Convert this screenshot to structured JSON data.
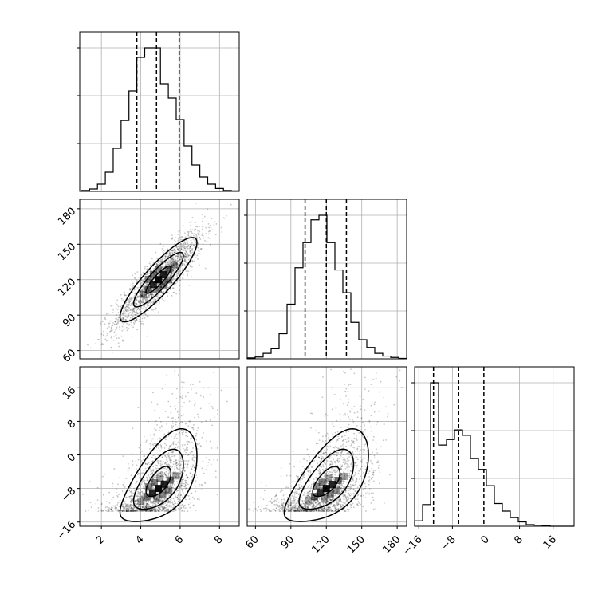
{
  "chart_data": {
    "type": "corner",
    "parameters": [
      {
        "ticks": [
          2,
          4,
          6,
          8
        ],
        "tick_labels": [
          "2",
          "4",
          "6",
          "8"
        ],
        "range": [
          0.9,
          9.0
        ],
        "quantiles": [
          3.8,
          4.8,
          5.95
        ]
      },
      {
        "ticks": [
          60,
          90,
          120,
          150,
          180
        ],
        "tick_labels": [
          "60",
          "90",
          "120",
          "150",
          "180"
        ],
        "range": [
          53,
          188
        ],
        "quantiles": [
          102,
          120,
          137
        ]
      },
      {
        "ticks": [
          -16,
          -8,
          0,
          8,
          16
        ],
        "tick_labels": [
          "−16",
          "−8",
          "0",
          "8",
          "16"
        ],
        "range": [
          -17,
          21
        ],
        "quantiles": [
          -12.5,
          -6.5,
          -0.5
        ]
      }
    ],
    "histograms": [
      {
        "param": 0,
        "bin_edges": [
          1.0,
          1.4,
          1.8,
          2.2,
          2.6,
          3.0,
          3.4,
          3.8,
          4.2,
          4.6,
          5.0,
          5.4,
          5.8,
          6.2,
          6.6,
          7.0,
          7.4,
          7.8,
          8.2,
          8.6,
          9.0
        ],
        "counts": [
          2,
          5,
          15,
          40,
          90,
          148,
          210,
          280,
          300,
          300,
          225,
          195,
          150,
          95,
          55,
          30,
          15,
          6,
          2,
          1
        ]
      },
      {
        "param": 1,
        "bin_edges": [
          53,
          59.75,
          66.5,
          73.25,
          80,
          86.75,
          93.5,
          100.25,
          107,
          113.75,
          120.5,
          127.25,
          134,
          140.75,
          147.5,
          154.25,
          161,
          167.75,
          174.5,
          181.25,
          188
        ],
        "counts": [
          2,
          4,
          12,
          22,
          55,
          120,
          200,
          255,
          305,
          315,
          255,
          195,
          145,
          80,
          42,
          25,
          12,
          6,
          3,
          1
        ]
      },
      {
        "param": 2,
        "bin_edges": [
          -17,
          -15.1,
          -13.2,
          -11.3,
          -9.4,
          -7.5,
          -5.6,
          -3.7,
          -1.8,
          0.1,
          2.0,
          3.9,
          5.8,
          7.7,
          9.6,
          11.5,
          13.4,
          15.3,
          17.2,
          19.1,
          21.0
        ],
        "counts": [
          10,
          40,
          265,
          150,
          160,
          178,
          168,
          125,
          105,
          75,
          42,
          28,
          16,
          8,
          3,
          2,
          1,
          0,
          0,
          0
        ]
      }
    ],
    "density_panels": [
      {
        "x_param": 0,
        "y_param": 1
      },
      {
        "x_param": 0,
        "y_param": 2
      },
      {
        "x_param": 1,
        "y_param": 2
      }
    ],
    "grid": true
  }
}
